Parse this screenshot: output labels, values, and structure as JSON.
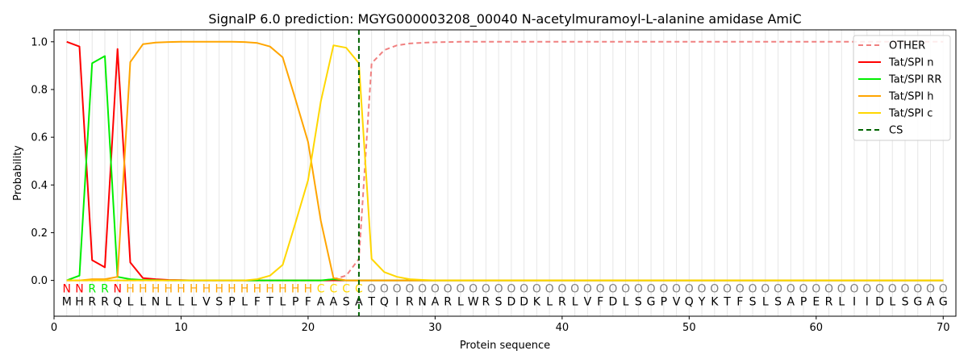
{
  "chart_data": {
    "type": "line",
    "title": "SignalP 6.0 prediction: MGYG000003208_00040 N-acetylmuramoyl-L-alanine amidase AmiC",
    "xlabel": "Protein sequence",
    "ylabel": "Probability",
    "xlim": [
      0,
      71
    ],
    "ylim": [
      -0.15,
      1.05
    ],
    "x_ticks": [
      0,
      10,
      20,
      30,
      40,
      50,
      60,
      70
    ],
    "y_ticks": [
      0.0,
      0.2,
      0.4,
      0.6,
      0.8,
      1.0
    ],
    "y_tick_labels": [
      "0.0",
      "0.2",
      "0.4",
      "0.6",
      "0.8",
      "1.0"
    ],
    "legend_position": "top-right",
    "grid": "vertical lines at each residue",
    "sequence": [
      "M",
      "H",
      "R",
      "R",
      "Q",
      "L",
      "L",
      "N",
      "L",
      "L",
      "L",
      "V",
      "S",
      "P",
      "L",
      "F",
      "T",
      "L",
      "P",
      "F",
      "A",
      "A",
      "S",
      "A",
      "T",
      "Q",
      "I",
      "R",
      "N",
      "A",
      "R",
      "L",
      "W",
      "R",
      "S",
      "D",
      "D",
      "K",
      "L",
      "R",
      "L",
      "V",
      "F",
      "D",
      "L",
      "S",
      "G",
      "P",
      "V",
      "Q",
      "Y",
      "K",
      "T",
      "F",
      "S",
      "L",
      "S",
      "A",
      "P",
      "E",
      "R",
      "L",
      "I",
      "I",
      "D",
      "L",
      "S",
      "G",
      "A",
      "G"
    ],
    "labels": [
      "N",
      "N",
      "R",
      "R",
      "N",
      "H",
      "H",
      "H",
      "H",
      "H",
      "H",
      "H",
      "H",
      "H",
      "H",
      "H",
      "H",
      "H",
      "H",
      "H",
      "C",
      "C",
      "C",
      "C",
      "O",
      "O",
      "O",
      "O",
      "O",
      "O",
      "O",
      "O",
      "O",
      "O",
      "O",
      "O",
      "O",
      "O",
      "O",
      "O",
      "O",
      "O",
      "O",
      "O",
      "O",
      "O",
      "O",
      "O",
      "O",
      "O",
      "O",
      "O",
      "O",
      "O",
      "O",
      "O",
      "O",
      "O",
      "O",
      "O",
      "O",
      "O",
      "O",
      "O",
      "O",
      "O",
      "O",
      "O",
      "O",
      "O"
    ],
    "label_colors": {
      "N": "#ff0000",
      "R": "#00ee00",
      "H": "#ffa500",
      "C": "#ffd700",
      "O": "#808080"
    },
    "cs_position": 24,
    "series": [
      {
        "name": "OTHER",
        "color": "#f08080",
        "dashed": true,
        "values": [
          0.0,
          0.0,
          0.0,
          0.0,
          0.0,
          0.0,
          0.0,
          0.0,
          0.0,
          0.0,
          0.0,
          0.0,
          0.0,
          0.0,
          0.0,
          0.0,
          0.0,
          0.0,
          0.0,
          0.0,
          0.0,
          0.005,
          0.02,
          0.09,
          0.91,
          0.965,
          0.985,
          0.993,
          0.996,
          0.998,
          0.999,
          1.0,
          1.0,
          1.0,
          1.0,
          1.0,
          1.0,
          1.0,
          1.0,
          1.0,
          1.0,
          1.0,
          1.0,
          1.0,
          1.0,
          1.0,
          1.0,
          1.0,
          1.0,
          1.0,
          1.0,
          1.0,
          1.0,
          1.0,
          1.0,
          1.0,
          1.0,
          1.0,
          1.0,
          1.0,
          1.0,
          1.0,
          1.0,
          1.0,
          1.0,
          1.0,
          1.0,
          1.0,
          1.0,
          1.0
        ]
      },
      {
        "name": "Tat/SPI n",
        "color": "#ff0000",
        "dashed": false,
        "values": [
          1.0,
          0.98,
          0.085,
          0.055,
          0.97,
          0.075,
          0.01,
          0.005,
          0.002,
          0.001,
          0.0,
          0.0,
          0.0,
          0.0,
          0.0,
          0.0,
          0.0,
          0.0,
          0.0,
          0.0,
          0.0,
          0.0,
          0.0,
          0.0,
          0.0,
          0.0,
          0.0,
          0.0,
          0.0,
          0.0,
          0.0,
          0.0,
          0.0,
          0.0,
          0.0,
          0.0,
          0.0,
          0.0,
          0.0,
          0.0,
          0.0,
          0.0,
          0.0,
          0.0,
          0.0,
          0.0,
          0.0,
          0.0,
          0.0,
          0.0,
          0.0,
          0.0,
          0.0,
          0.0,
          0.0,
          0.0,
          0.0,
          0.0,
          0.0,
          0.0,
          0.0,
          0.0,
          0.0,
          0.0,
          0.0,
          0.0,
          0.0,
          0.0,
          0.0,
          0.0
        ]
      },
      {
        "name": "Tat/SPI RR",
        "color": "#00ee00",
        "dashed": false,
        "values": [
          0.0,
          0.02,
          0.91,
          0.94,
          0.015,
          0.005,
          0.002,
          0.001,
          0.0,
          0.0,
          0.0,
          0.0,
          0.0,
          0.0,
          0.0,
          0.0,
          0.0,
          0.0,
          0.0,
          0.0,
          0.0,
          0.005,
          0.0,
          0.0,
          0.0,
          0.0,
          0.0,
          0.0,
          0.0,
          0.0,
          0.0,
          0.0,
          0.0,
          0.0,
          0.0,
          0.0,
          0.0,
          0.0,
          0.0,
          0.0,
          0.0,
          0.0,
          0.0,
          0.0,
          0.0,
          0.0,
          0.0,
          0.0,
          0.0,
          0.0,
          0.0,
          0.0,
          0.0,
          0.0,
          0.0,
          0.0,
          0.0,
          0.0,
          0.0,
          0.0,
          0.0,
          0.0,
          0.0,
          0.0,
          0.0,
          0.0,
          0.0,
          0.0,
          0.0,
          0.0
        ]
      },
      {
        "name": "Tat/SPI h",
        "color": "#ffa500",
        "dashed": false,
        "values": [
          0.0,
          0.0,
          0.005,
          0.005,
          0.015,
          0.915,
          0.99,
          0.997,
          0.999,
          1.0,
          1.0,
          1.0,
          1.0,
          1.0,
          0.999,
          0.995,
          0.98,
          0.935,
          0.76,
          0.58,
          0.25,
          0.01,
          0.0,
          0.0,
          0.0,
          0.0,
          0.0,
          0.0,
          0.0,
          0.0,
          0.0,
          0.0,
          0.0,
          0.0,
          0.0,
          0.0,
          0.0,
          0.0,
          0.0,
          0.0,
          0.0,
          0.0,
          0.0,
          0.0,
          0.0,
          0.0,
          0.0,
          0.0,
          0.0,
          0.0,
          0.0,
          0.0,
          0.0,
          0.0,
          0.0,
          0.0,
          0.0,
          0.0,
          0.0,
          0.0,
          0.0,
          0.0,
          0.0,
          0.0,
          0.0,
          0.0,
          0.0,
          0.0,
          0.0,
          0.0
        ]
      },
      {
        "name": "Tat/SPI c",
        "color": "#ffd700",
        "dashed": false,
        "values": [
          0.0,
          0.0,
          0.0,
          0.0,
          0.0,
          0.0,
          0.0,
          0.0,
          0.0,
          0.0,
          0.0,
          0.0,
          0.0,
          0.0,
          0.0,
          0.005,
          0.02,
          0.065,
          0.24,
          0.42,
          0.75,
          0.985,
          0.975,
          0.91,
          0.09,
          0.035,
          0.015,
          0.005,
          0.002,
          0.0,
          0.0,
          0.0,
          0.0,
          0.0,
          0.0,
          0.0,
          0.0,
          0.0,
          0.0,
          0.0,
          0.0,
          0.0,
          0.0,
          0.0,
          0.0,
          0.0,
          0.0,
          0.0,
          0.0,
          0.0,
          0.0,
          0.0,
          0.0,
          0.0,
          0.0,
          0.0,
          0.0,
          0.0,
          0.0,
          0.0,
          0.0,
          0.0,
          0.0,
          0.0,
          0.0,
          0.0,
          0.0,
          0.0,
          0.0,
          0.0
        ]
      },
      {
        "name": "CS",
        "color": "#006400",
        "dashed": true,
        "vertical_at": 24
      }
    ]
  }
}
